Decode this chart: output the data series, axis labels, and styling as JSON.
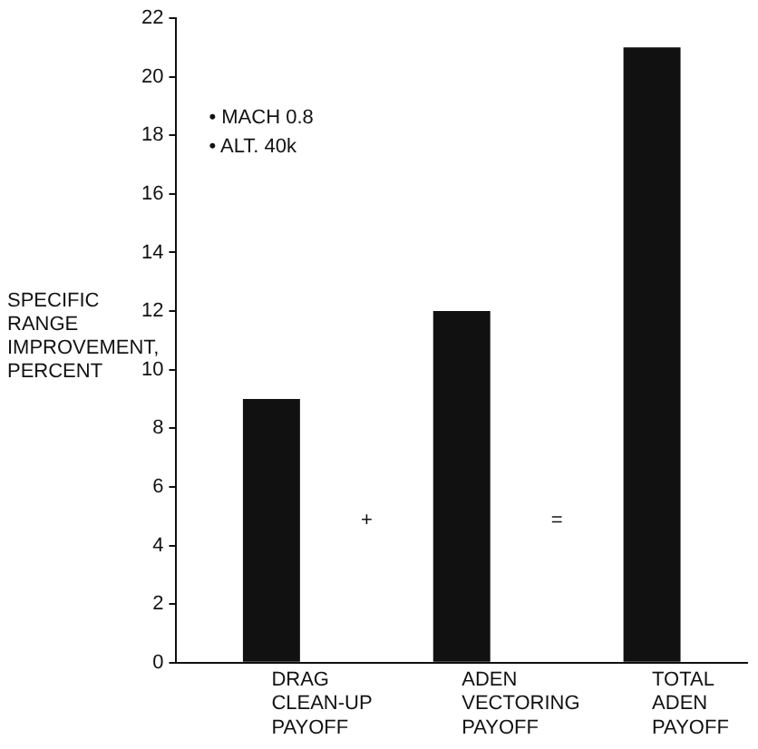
{
  "chart_data": {
    "type": "bar",
    "ylabel": "SPECIFIC RANGE IMPROVEMENT, PERCENT",
    "categories": [
      "DRAG\nCLEAN-UP\nPAYOFF",
      "ADEN\nVECTORING\nPAYOFF",
      "TOTAL\nADEN\nPAYOFF"
    ],
    "values": [
      9,
      12,
      21
    ],
    "color": "#111111",
    "ylim": [
      0,
      22
    ],
    "yticks": [
      0,
      2,
      4,
      6,
      8,
      10,
      12,
      14,
      16,
      18,
      20,
      22
    ],
    "grid": false,
    "legend": false,
    "annotations": [
      "• MACH 0.8",
      "• ALT. 40k",
      "+",
      "="
    ]
  }
}
